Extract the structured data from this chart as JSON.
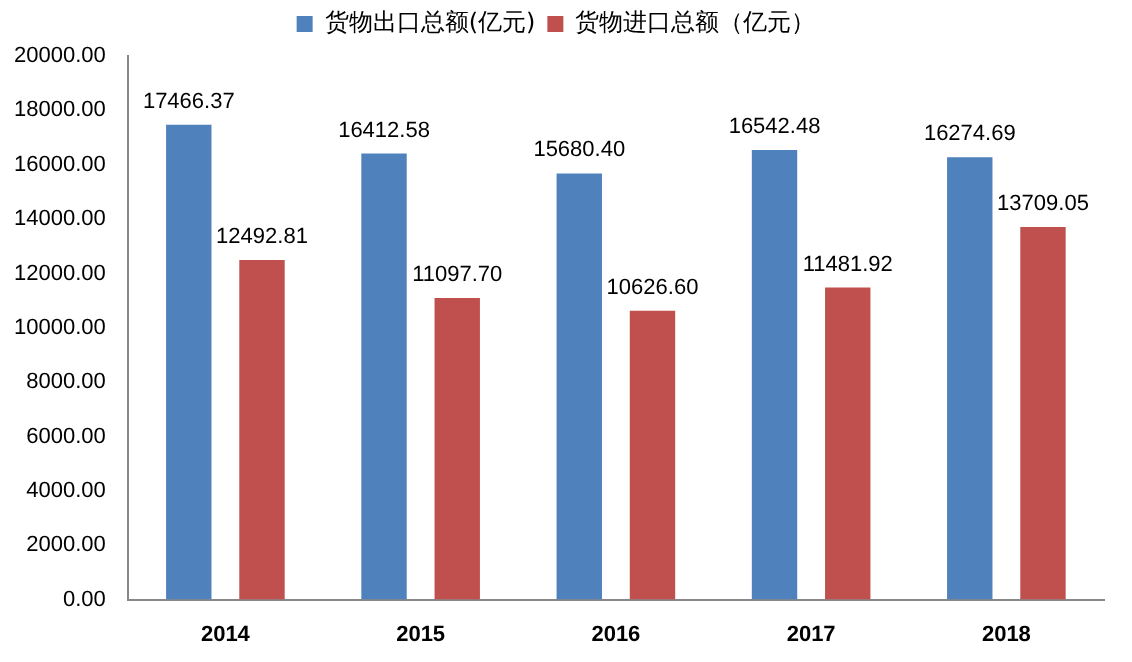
{
  "chart_data": {
    "type": "bar",
    "categories": [
      "2014",
      "2015",
      "2016",
      "2017",
      "2018"
    ],
    "series": [
      {
        "name": "货物出口总额(亿元)",
        "color": "#4f81bd",
        "values": [
          17466.37,
          16412.58,
          15680.4,
          16542.48,
          16274.69
        ],
        "value_labels": [
          "17466.37",
          "16412.58",
          "15680.40",
          "16542.48",
          "16274.69"
        ]
      },
      {
        "name": "货物进口总额（亿元）",
        "color": "#c0504d",
        "values": [
          12492.81,
          11097.7,
          10626.6,
          11481.92,
          13709.05
        ],
        "value_labels": [
          "12492.81",
          "11097.70",
          "10626.60",
          "11481.92",
          "13709.05"
        ]
      }
    ],
    "ylim": [
      0,
      20000
    ],
    "yticks": [
      {
        "value": 0,
        "label": "0.00"
      },
      {
        "value": 2000,
        "label": "2000.00"
      },
      {
        "value": 4000,
        "label": "4000.00"
      },
      {
        "value": 6000,
        "label": "6000.00"
      },
      {
        "value": 8000,
        "label": "8000.00"
      },
      {
        "value": 10000,
        "label": "10000.00"
      },
      {
        "value": 12000,
        "label": "12000.00"
      },
      {
        "value": 14000,
        "label": "14000.00"
      },
      {
        "value": 16000,
        "label": "16000.00"
      },
      {
        "value": 18000,
        "label": "18000.00"
      },
      {
        "value": 20000,
        "label": "20000.00"
      }
    ],
    "grid": false,
    "legend": "top"
  }
}
